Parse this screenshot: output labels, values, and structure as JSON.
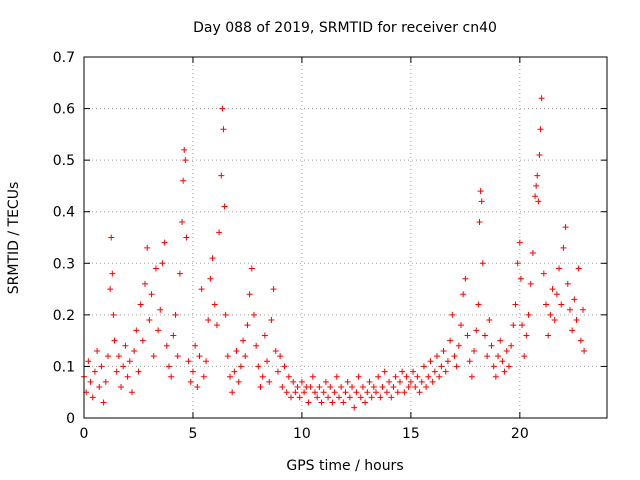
{
  "chart_data": {
    "type": "scatter",
    "title": "Day 088 of 2019, SRMTID for receiver cn40",
    "xlabel": "GPS time / hours",
    "ylabel": "SRMTID / TECUs",
    "xlim": [
      0,
      24
    ],
    "ylim": [
      0,
      0.7
    ],
    "x_ticks": [
      0,
      5,
      10,
      15,
      20
    ],
    "x_tick_labels": [
      "0",
      "5",
      "10",
      "15",
      "20"
    ],
    "y_ticks": [
      0,
      0.1,
      0.2,
      0.3,
      0.4,
      0.5,
      0.6,
      0.7
    ],
    "y_tick_labels": [
      "0",
      "0.1",
      "0.2",
      "0.3",
      "0.4",
      "0.5",
      "0.6",
      "0.7"
    ],
    "grid": true,
    "marker": "+",
    "colors": {
      "points": "#ff0000",
      "grid": "#a0a0a0",
      "axes": "#000000"
    },
    "series": [
      {
        "name": "SRMTID",
        "points": [
          [
            0.0,
            0.08
          ],
          [
            0.1,
            0.05
          ],
          [
            0.2,
            0.11
          ],
          [
            0.3,
            0.07
          ],
          [
            0.4,
            0.04
          ],
          [
            0.5,
            0.09
          ],
          [
            0.6,
            0.13
          ],
          [
            0.7,
            0.06
          ],
          [
            0.8,
            0.1
          ],
          [
            0.9,
            0.03
          ],
          [
            1.0,
            0.07
          ],
          [
            1.1,
            0.12
          ],
          [
            1.2,
            0.25
          ],
          [
            1.25,
            0.35
          ],
          [
            1.3,
            0.28
          ],
          [
            1.35,
            0.2
          ],
          [
            1.4,
            0.15
          ],
          [
            1.5,
            0.09
          ],
          [
            1.6,
            0.12
          ],
          [
            1.7,
            0.06
          ],
          [
            1.8,
            0.1
          ],
          [
            1.9,
            0.14
          ],
          [
            2.0,
            0.08
          ],
          [
            2.1,
            0.11
          ],
          [
            2.2,
            0.05
          ],
          [
            2.3,
            0.13
          ],
          [
            2.4,
            0.17
          ],
          [
            2.5,
            0.09
          ],
          [
            2.6,
            0.22
          ],
          [
            2.7,
            0.15
          ],
          [
            2.8,
            0.26
          ],
          [
            2.9,
            0.33
          ],
          [
            3.0,
            0.19
          ],
          [
            3.1,
            0.24
          ],
          [
            3.2,
            0.12
          ],
          [
            3.3,
            0.29
          ],
          [
            3.4,
            0.17
          ],
          [
            3.5,
            0.21
          ],
          [
            3.6,
            0.3
          ],
          [
            3.7,
            0.34
          ],
          [
            3.8,
            0.14
          ],
          [
            3.9,
            0.1
          ],
          [
            4.0,
            0.08
          ],
          [
            4.1,
            0.16
          ],
          [
            4.2,
            0.2
          ],
          [
            4.3,
            0.12
          ],
          [
            4.4,
            0.28
          ],
          [
            4.5,
            0.38
          ],
          [
            4.55,
            0.46
          ],
          [
            4.6,
            0.52
          ],
          [
            4.65,
            0.5
          ],
          [
            4.7,
            0.35
          ],
          [
            4.8,
            0.11
          ],
          [
            4.9,
            0.07
          ],
          [
            5.0,
            0.09
          ],
          [
            5.1,
            0.14
          ],
          [
            5.2,
            0.06
          ],
          [
            5.3,
            0.12
          ],
          [
            5.4,
            0.25
          ],
          [
            5.5,
            0.08
          ],
          [
            5.6,
            0.11
          ],
          [
            5.7,
            0.19
          ],
          [
            5.8,
            0.27
          ],
          [
            5.9,
            0.31
          ],
          [
            6.0,
            0.22
          ],
          [
            6.1,
            0.18
          ],
          [
            6.2,
            0.36
          ],
          [
            6.3,
            0.47
          ],
          [
            6.35,
            0.6
          ],
          [
            6.4,
            0.56
          ],
          [
            6.45,
            0.41
          ],
          [
            6.5,
            0.2
          ],
          [
            6.6,
            0.12
          ],
          [
            6.7,
            0.08
          ],
          [
            6.8,
            0.05
          ],
          [
            6.9,
            0.09
          ],
          [
            7.0,
            0.13
          ],
          [
            7.1,
            0.07
          ],
          [
            7.2,
            0.1
          ],
          [
            7.3,
            0.15
          ],
          [
            7.4,
            0.12
          ],
          [
            7.5,
            0.18
          ],
          [
            7.6,
            0.24
          ],
          [
            7.7,
            0.29
          ],
          [
            7.8,
            0.2
          ],
          [
            7.9,
            0.14
          ],
          [
            8.0,
            0.1
          ],
          [
            8.1,
            0.06
          ],
          [
            8.2,
            0.08
          ],
          [
            8.3,
            0.16
          ],
          [
            8.4,
            0.11
          ],
          [
            8.5,
            0.07
          ],
          [
            8.6,
            0.19
          ],
          [
            8.7,
            0.25
          ],
          [
            8.8,
            0.13
          ],
          [
            8.9,
            0.09
          ],
          [
            9.0,
            0.12
          ],
          [
            9.1,
            0.06
          ],
          [
            9.2,
            0.1
          ],
          [
            9.3,
            0.05
          ],
          [
            9.4,
            0.08
          ],
          [
            9.5,
            0.04
          ],
          [
            9.6,
            0.07
          ],
          [
            9.7,
            0.05
          ],
          [
            9.8,
            0.06
          ],
          [
            9.9,
            0.04
          ],
          [
            10.0,
            0.07
          ],
          [
            10.1,
            0.05
          ],
          [
            10.2,
            0.06
          ],
          [
            10.3,
            0.03
          ],
          [
            10.4,
            0.06
          ],
          [
            10.5,
            0.08
          ],
          [
            10.6,
            0.05
          ],
          [
            10.7,
            0.04
          ],
          [
            10.8,
            0.06
          ],
          [
            10.9,
            0.03
          ],
          [
            11.0,
            0.05
          ],
          [
            11.1,
            0.07
          ],
          [
            11.2,
            0.04
          ],
          [
            11.3,
            0.06
          ],
          [
            11.4,
            0.03
          ],
          [
            11.5,
            0.05
          ],
          [
            11.6,
            0.08
          ],
          [
            11.7,
            0.04
          ],
          [
            11.8,
            0.06
          ],
          [
            11.9,
            0.03
          ],
          [
            12.0,
            0.05
          ],
          [
            12.1,
            0.07
          ],
          [
            12.2,
            0.04
          ],
          [
            12.3,
            0.06
          ],
          [
            12.4,
            0.02
          ],
          [
            12.5,
            0.05
          ],
          [
            12.6,
            0.08
          ],
          [
            12.7,
            0.04
          ],
          [
            12.8,
            0.06
          ],
          [
            12.9,
            0.03
          ],
          [
            13.0,
            0.05
          ],
          [
            13.1,
            0.07
          ],
          [
            13.2,
            0.04
          ],
          [
            13.3,
            0.06
          ],
          [
            13.4,
            0.05
          ],
          [
            13.5,
            0.08
          ],
          [
            13.6,
            0.04
          ],
          [
            13.7,
            0.06
          ],
          [
            13.8,
            0.09
          ],
          [
            13.9,
            0.05
          ],
          [
            14.0,
            0.07
          ],
          [
            14.1,
            0.04
          ],
          [
            14.2,
            0.06
          ],
          [
            14.3,
            0.08
          ],
          [
            14.4,
            0.05
          ],
          [
            14.5,
            0.07
          ],
          [
            14.6,
            0.09
          ],
          [
            14.7,
            0.05
          ],
          [
            14.8,
            0.08
          ],
          [
            14.9,
            0.06
          ],
          [
            15.0,
            0.07
          ],
          [
            15.1,
            0.09
          ],
          [
            15.2,
            0.06
          ],
          [
            15.3,
            0.08
          ],
          [
            15.4,
            0.05
          ],
          [
            15.5,
            0.07
          ],
          [
            15.6,
            0.1
          ],
          [
            15.7,
            0.06
          ],
          [
            15.8,
            0.08
          ],
          [
            15.9,
            0.11
          ],
          [
            16.0,
            0.07
          ],
          [
            16.1,
            0.09
          ],
          [
            16.2,
            0.12
          ],
          [
            16.3,
            0.08
          ],
          [
            16.4,
            0.1
          ],
          [
            16.5,
            0.13
          ],
          [
            16.6,
            0.09
          ],
          [
            16.7,
            0.11
          ],
          [
            16.8,
            0.15
          ],
          [
            16.9,
            0.2
          ],
          [
            17.0,
            0.12
          ],
          [
            17.1,
            0.1
          ],
          [
            17.2,
            0.14
          ],
          [
            17.3,
            0.18
          ],
          [
            17.4,
            0.24
          ],
          [
            17.5,
            0.27
          ],
          [
            17.6,
            0.16
          ],
          [
            17.7,
            0.11
          ],
          [
            17.8,
            0.08
          ],
          [
            17.9,
            0.13
          ],
          [
            18.0,
            0.17
          ],
          [
            18.1,
            0.22
          ],
          [
            18.15,
            0.38
          ],
          [
            18.2,
            0.44
          ],
          [
            18.25,
            0.42
          ],
          [
            18.3,
            0.3
          ],
          [
            18.4,
            0.16
          ],
          [
            18.5,
            0.12
          ],
          [
            18.6,
            0.19
          ],
          [
            18.7,
            0.14
          ],
          [
            18.8,
            0.1
          ],
          [
            18.9,
            0.08
          ],
          [
            19.0,
            0.12
          ],
          [
            19.1,
            0.15
          ],
          [
            19.2,
            0.11
          ],
          [
            19.3,
            0.09
          ],
          [
            19.4,
            0.13
          ],
          [
            19.5,
            0.1
          ],
          [
            19.6,
            0.14
          ],
          [
            19.7,
            0.18
          ],
          [
            19.8,
            0.22
          ],
          [
            19.9,
            0.3
          ],
          [
            20.0,
            0.34
          ],
          [
            20.05,
            0.27
          ],
          [
            20.1,
            0.18
          ],
          [
            20.2,
            0.12
          ],
          [
            20.3,
            0.16
          ],
          [
            20.4,
            0.2
          ],
          [
            20.5,
            0.26
          ],
          [
            20.6,
            0.32
          ],
          [
            20.7,
            0.43
          ],
          [
            20.75,
            0.45
          ],
          [
            20.8,
            0.47
          ],
          [
            20.85,
            0.42
          ],
          [
            20.9,
            0.51
          ],
          [
            20.95,
            0.56
          ],
          [
            21.0,
            0.62
          ],
          [
            21.1,
            0.28
          ],
          [
            21.2,
            0.22
          ],
          [
            21.3,
            0.16
          ],
          [
            21.4,
            0.2
          ],
          [
            21.5,
            0.25
          ],
          [
            21.6,
            0.19
          ],
          [
            21.7,
            0.24
          ],
          [
            21.8,
            0.29
          ],
          [
            21.9,
            0.22
          ],
          [
            22.0,
            0.33
          ],
          [
            22.1,
            0.37
          ],
          [
            22.2,
            0.26
          ],
          [
            22.3,
            0.21
          ],
          [
            22.4,
            0.17
          ],
          [
            22.5,
            0.23
          ],
          [
            22.6,
            0.19
          ],
          [
            22.7,
            0.29
          ],
          [
            22.8,
            0.15
          ],
          [
            22.9,
            0.21
          ],
          [
            22.95,
            0.13
          ]
        ]
      }
    ]
  }
}
